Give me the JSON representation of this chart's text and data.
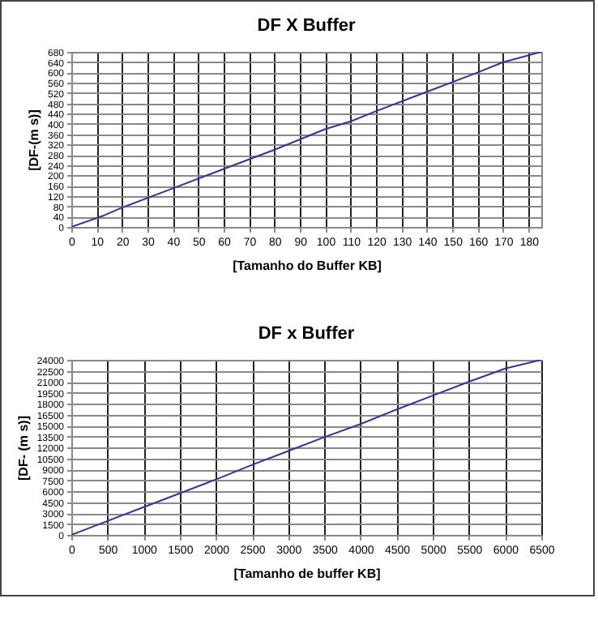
{
  "chart_data": [
    {
      "type": "line",
      "title": "DF X Buffer",
      "xlabel": "[Tamanho do Buffer KB]",
      "ylabel": "[DF-(m s)]",
      "x": [
        0,
        13,
        20,
        40,
        60,
        80,
        100,
        110,
        120,
        140,
        160,
        170,
        185
      ],
      "series": [
        {
          "color": "#333399",
          "values": [
            0,
            45,
            75,
            150,
            225,
            300,
            380,
            410,
            450,
            525,
            600,
            640,
            680
          ]
        }
      ],
      "xlim": [
        0,
        185
      ],
      "xticks": [
        0,
        10,
        20,
        30,
        40,
        50,
        60,
        70,
        80,
        90,
        100,
        110,
        120,
        130,
        140,
        150,
        160,
        170,
        180
      ],
      "ylim": [
        0,
        680
      ],
      "yticks": [
        0,
        40,
        80,
        120,
        160,
        200,
        240,
        280,
        320,
        360,
        400,
        440,
        480,
        520,
        560,
        600,
        640,
        680
      ],
      "grid": true
    },
    {
      "type": "line",
      "title": "DF x Buffer",
      "xlabel": "[Tamanho de buffer KB]",
      "ylabel": "[DF- (m s)]",
      "x": [
        0,
        500,
        1000,
        1500,
        2000,
        2500,
        3000,
        3500,
        4000,
        4500,
        5000,
        5500,
        6000,
        6500
      ],
      "series": [
        {
          "color": "#333399",
          "values": [
            0,
            1900,
            3800,
            5700,
            7600,
            9600,
            11500,
            13400,
            15200,
            17200,
            19100,
            21000,
            22800,
            24000
          ]
        }
      ],
      "xlim": [
        0,
        6500
      ],
      "xticks": [
        0,
        500,
        1000,
        1500,
        2000,
        2500,
        3000,
        3500,
        4000,
        4500,
        5000,
        5500,
        6000,
        6500
      ],
      "ylim": [
        0,
        24000
      ],
      "yticks": [
        0,
        1500,
        3000,
        4500,
        6000,
        7500,
        9000,
        10500,
        12000,
        13500,
        15000,
        16500,
        18000,
        19500,
        21000,
        22500,
        24000
      ],
      "grid": true
    }
  ]
}
